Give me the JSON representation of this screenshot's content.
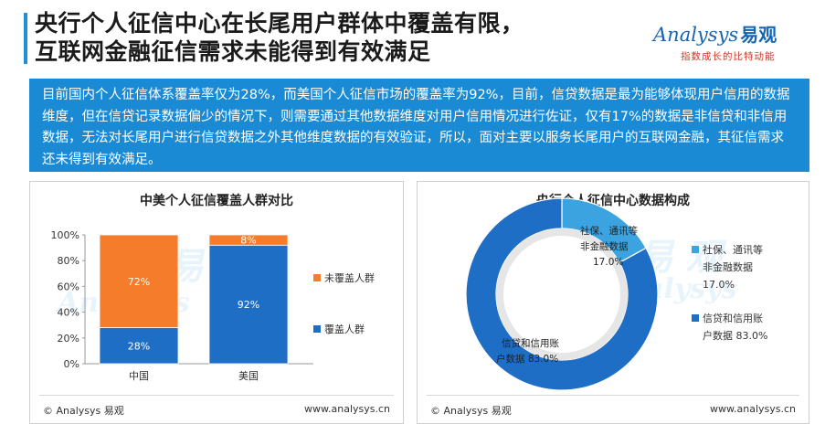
{
  "header": {
    "title_line1": "央行个人征信中心在长尾用户群体中覆盖有限，",
    "title_line2": "互联网金融征信需求未能得到有效满足"
  },
  "logo": {
    "brand": "Analysys",
    "brand_cn": "易观",
    "slogan": "指数成长的比特动能"
  },
  "summary_text": "目前国内个人征信体系覆盖率仅为28%，而美国个人征信市场的覆盖率为92%，目前，信贷数据是最为能够体现用户信用的数据维度，但在信贷记录数据偏少的情况下，则需要通过其他数据维度对用户信用情况进行佐证，仅有17%的数据是非信贷和非信用数据，无法对长尾用户进行信贷数据之外其他维度数据的有效验证，所以，面对主要以服务长尾用户的互联网金融，其征信需求还未得到有效满足。",
  "colors": {
    "accent_blue": "#1a8ad4",
    "covered_blue": "#1f6ec6",
    "uncovered_orange": "#f47c2a",
    "donut_dark": "#1f6ec6",
    "donut_light": "#3aa3e0"
  },
  "panels": {
    "left_title": "中美个人征信覆盖人群对比",
    "right_title": "央行个人征信中心数据构成",
    "footer_left": "© Analysys 易观",
    "footer_right": "www.analysys.cn"
  },
  "chart_data": [
    {
      "type": "bar",
      "stacked": true,
      "percent": true,
      "title": "中美个人征信覆盖人群对比",
      "categories": [
        "中国",
        "美国"
      ],
      "series": [
        {
          "name": "覆盖人群",
          "values": [
            28,
            92
          ],
          "labels": [
            "28%",
            "92%"
          ],
          "color": "#1f6ec6"
        },
        {
          "name": "未覆盖人群",
          "values": [
            72,
            8
          ],
          "labels": [
            "72%",
            "8%"
          ],
          "color": "#f47c2a"
        }
      ],
      "ylim": [
        0,
        100
      ],
      "yticks": [
        "0%",
        "20%",
        "40%",
        "60%",
        "80%",
        "100%"
      ],
      "legend_position": "right",
      "grid": false
    },
    {
      "type": "pie",
      "donut": true,
      "title": "央行个人征信中心数据构成",
      "slices": [
        {
          "name": "社保、通讯等非金融数据",
          "value": 17.0,
          "label": "17.0%",
          "color": "#3aa3e0",
          "label_lines": [
            "社保、通讯等",
            "非金融数据",
            "17.0%"
          ]
        },
        {
          "name": "信贷和信用账户数据",
          "value": 83.0,
          "label": "83.0%",
          "color": "#1f6ec6",
          "label_lines": [
            "信贷和信用账",
            "户数据 83.0%"
          ]
        }
      ],
      "legend": [
        {
          "lines": [
            "社保、通讯等",
            "非金融数据",
            "17.0%"
          ],
          "color": "#3aa3e0"
        },
        {
          "lines": [
            "信贷和信用账",
            "户数据 83.0%"
          ],
          "color": "#1f6ec6"
        }
      ],
      "legend_position": "right"
    }
  ]
}
